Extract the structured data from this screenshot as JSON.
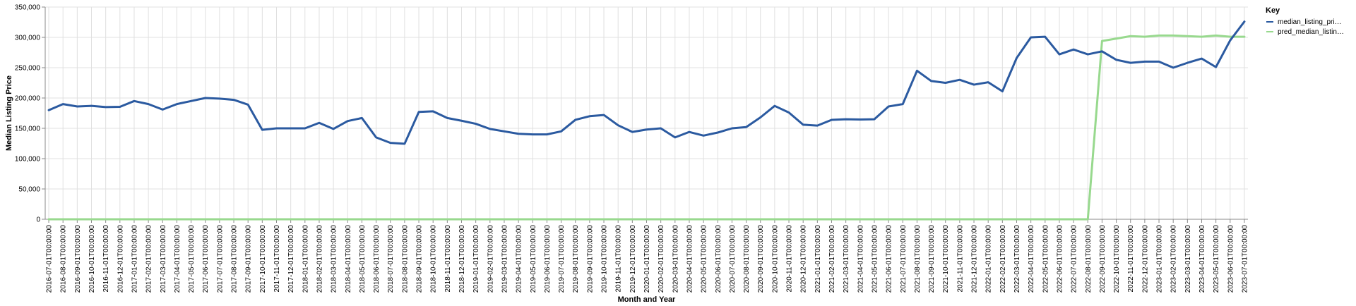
{
  "chart_data": {
    "type": "line",
    "xlabel": "Month and Year",
    "ylabel": "Median Listing Price",
    "ylim": [
      0,
      350000
    ],
    "y_ticks": [
      "0",
      "50,000",
      "100,000",
      "150,000",
      "200,000",
      "250,000",
      "300,000",
      "350,000"
    ],
    "grid": true,
    "legend": {
      "title": "Key",
      "placement": "top-right",
      "entries": [
        "median_listing_pri…",
        "pred_median_listin…"
      ]
    },
    "categories": [
      "2016-07-01T00:00:00",
      "2016-08-01T00:00:00",
      "2016-09-01T00:00:00",
      "2016-10-01T00:00:00",
      "2016-11-01T00:00:00",
      "2016-12-01T00:00:00",
      "2017-01-01T00:00:00",
      "2017-02-01T00:00:00",
      "2017-03-01T00:00:00",
      "2017-04-01T00:00:00",
      "2017-05-01T00:00:00",
      "2017-06-01T00:00:00",
      "2017-07-01T00:00:00",
      "2017-08-01T00:00:00",
      "2017-09-01T00:00:00",
      "2017-10-01T00:00:00",
      "2017-11-01T00:00:00",
      "2017-12-01T00:00:00",
      "2018-01-01T00:00:00",
      "2018-02-01T00:00:00",
      "2018-03-01T00:00:00",
      "2018-04-01T00:00:00",
      "2018-05-01T00:00:00",
      "2018-06-01T00:00:00",
      "2018-07-01T00:00:00",
      "2018-08-01T00:00:00",
      "2018-09-01T00:00:00",
      "2018-10-01T00:00:00",
      "2018-11-01T00:00:00",
      "2018-12-01T00:00:00",
      "2019-01-01T00:00:00",
      "2019-02-01T00:00:00",
      "2019-03-01T00:00:00",
      "2019-04-01T00:00:00",
      "2019-05-01T00:00:00",
      "2019-06-01T00:00:00",
      "2019-07-01T00:00:00",
      "2019-08-01T00:00:00",
      "2019-09-01T00:00:00",
      "2019-10-01T00:00:00",
      "2019-11-01T00:00:00",
      "2019-12-01T00:00:00",
      "2020-01-01T00:00:00",
      "2020-02-01T00:00:00",
      "2020-03-01T00:00:00",
      "2020-04-01T00:00:00",
      "2020-05-01T00:00:00",
      "2020-06-01T00:00:00",
      "2020-07-01T00:00:00",
      "2020-08-01T00:00:00",
      "2020-09-01T00:00:00",
      "2020-10-01T00:00:00",
      "2020-11-01T00:00:00",
      "2020-12-01T00:00:00",
      "2021-01-01T00:00:00",
      "2021-02-01T00:00:00",
      "2021-03-01T00:00:00",
      "2021-04-01T00:00:00",
      "2021-05-01T00:00:00",
      "2021-06-01T00:00:00",
      "2021-07-01T00:00:00",
      "2021-08-01T00:00:00",
      "2021-09-01T00:00:00",
      "2021-10-01T00:00:00",
      "2021-11-01T00:00:00",
      "2021-12-01T00:00:00",
      "2022-01-01T00:00:00",
      "2022-02-01T00:00:00",
      "2022-03-01T00:00:00",
      "2022-04-01T00:00:00",
      "2022-05-01T00:00:00",
      "2022-06-01T00:00:00",
      "2022-07-01T00:00:00",
      "2022-08-01T00:00:00",
      "2022-09-01T00:00:00",
      "2022-10-01T00:00:00",
      "2022-11-01T00:00:00",
      "2022-12-01T00:00:00",
      "2023-01-01T00:00:00",
      "2023-02-01T00:00:00",
      "2023-03-01T00:00:00",
      "2023-04-01T00:00:00",
      "2023-05-01T00:00:00",
      "2023-06-01T00:00:00",
      "2023-07-01T00:00:00"
    ],
    "series": [
      {
        "name": "median_listing_pri…",
        "color": "#2b5aa0",
        "values": [
          180000,
          190000,
          186000,
          187000,
          185000,
          185500,
          195000,
          190000,
          181000,
          190000,
          195000,
          200000,
          199000,
          197000,
          189000,
          147500,
          150000,
          150000,
          150000,
          159000,
          149000,
          162000,
          167000,
          135000,
          126000,
          124500,
          177000,
          178000,
          167000,
          162500,
          157500,
          149000,
          145000,
          141000,
          140000,
          140000,
          145000,
          164000,
          170000,
          172000,
          155000,
          144000,
          148000,
          150000,
          135000,
          144000,
          138000,
          143000,
          150000,
          152000,
          168000,
          187000,
          176000,
          156000,
          154500,
          164000,
          165000,
          164500,
          165000,
          186000,
          190000,
          245000,
          228000,
          225000,
          230000,
          222000,
          226000,
          211000,
          266000,
          300000,
          301000,
          272000,
          280000,
          272000,
          277000,
          263000,
          258000,
          260000,
          260000,
          250000,
          258000,
          265000,
          251000,
          295000,
          326000
        ]
      },
      {
        "name": "pred_median_listin…",
        "color": "#98d98e",
        "values": [
          0,
          0,
          0,
          0,
          0,
          0,
          0,
          0,
          0,
          0,
          0,
          0,
          0,
          0,
          0,
          0,
          0,
          0,
          0,
          0,
          0,
          0,
          0,
          0,
          0,
          0,
          0,
          0,
          0,
          0,
          0,
          0,
          0,
          0,
          0,
          0,
          0,
          0,
          0,
          0,
          0,
          0,
          0,
          0,
          0,
          0,
          0,
          0,
          0,
          0,
          0,
          0,
          0,
          0,
          0,
          0,
          0,
          0,
          0,
          0,
          0,
          0,
          0,
          0,
          0,
          0,
          0,
          0,
          0,
          0,
          0,
          0,
          0,
          0,
          294000,
          298000,
          302000,
          301000,
          303000,
          303000,
          302000,
          301000,
          303000,
          301000,
          301000
        ]
      }
    ]
  }
}
